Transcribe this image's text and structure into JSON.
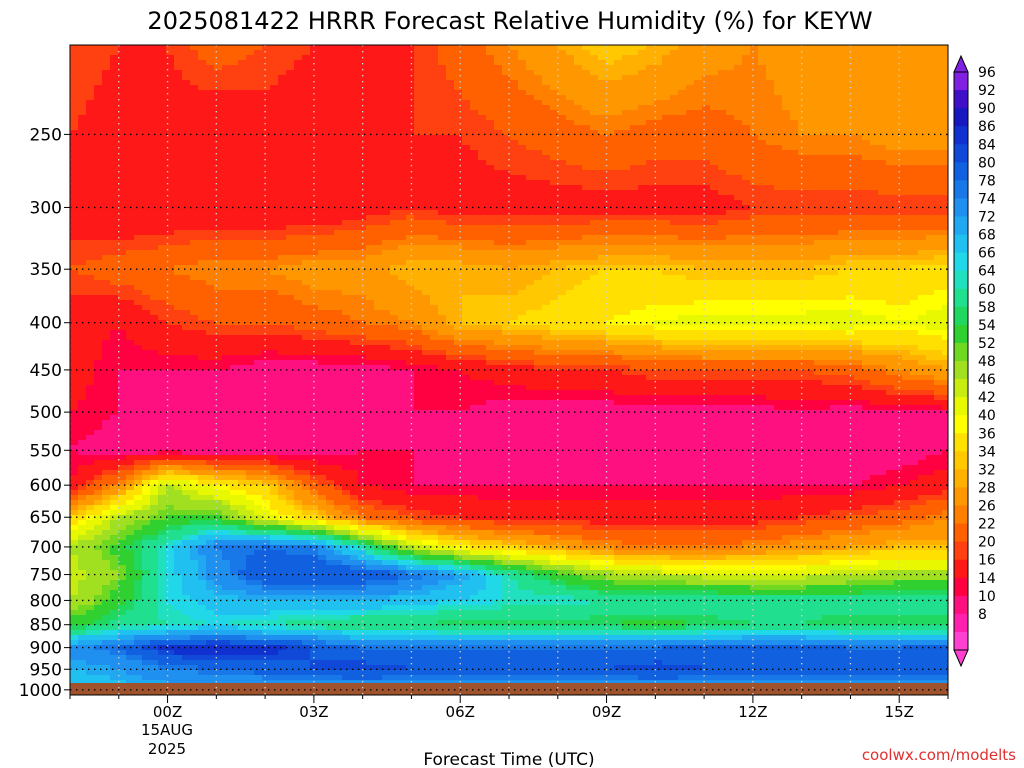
{
  "chart_data": {
    "type": "heatmap",
    "title": "2025081422 HRRR Forecast Relative Humidity (%) for KEYW",
    "xlabel": "Forecast Time (UTC)",
    "ylabel": "",
    "x_ticks": [
      "00Z",
      "03Z",
      "06Z",
      "09Z",
      "12Z",
      "15Z"
    ],
    "x_date_label": [
      "15AUG",
      "2025"
    ],
    "x_hours": [
      -2,
      -1,
      0,
      1,
      2,
      3,
      4,
      5,
      6,
      7,
      8,
      9,
      10,
      11,
      12,
      13,
      14,
      15,
      16
    ],
    "y_ticks": [
      250,
      300,
      350,
      400,
      450,
      500,
      550,
      600,
      650,
      700,
      750,
      800,
      850,
      900,
      950,
      1000
    ],
    "y_levels": [
      200,
      250,
      300,
      350,
      400,
      450,
      500,
      550,
      600,
      650,
      700,
      750,
      800,
      850,
      900,
      950,
      1000
    ],
    "ylim": [
      1013,
      200
    ],
    "xlim": [
      -2,
      16
    ],
    "log_pressure_axis": true,
    "values": [
      [
        22,
        20,
        20,
        24,
        22,
        20,
        18,
        20,
        24,
        28,
        32,
        36,
        34,
        30,
        28,
        30,
        30,
        28,
        30
      ],
      [
        20,
        18,
        18,
        16,
        18,
        16,
        18,
        20,
        20,
        22,
        24,
        26,
        24,
        24,
        26,
        28,
        28,
        30,
        30
      ],
      [
        18,
        16,
        16,
        16,
        16,
        16,
        18,
        20,
        18,
        18,
        18,
        18,
        18,
        18,
        20,
        20,
        20,
        20,
        20
      ],
      [
        22,
        24,
        26,
        28,
        28,
        30,
        30,
        34,
        34,
        32,
        34,
        36,
        36,
        34,
        34,
        34,
        36,
        36,
        38
      ],
      [
        18,
        16,
        20,
        22,
        22,
        24,
        26,
        28,
        34,
        36,
        38,
        40,
        42,
        44,
        44,
        44,
        44,
        42,
        44
      ],
      [
        18,
        14,
        14,
        14,
        12,
        12,
        12,
        14,
        16,
        18,
        20,
        20,
        22,
        22,
        22,
        22,
        24,
        28,
        32
      ],
      [
        16,
        14,
        12,
        10,
        10,
        10,
        12,
        14,
        14,
        12,
        12,
        12,
        12,
        12,
        12,
        14,
        12,
        14,
        14
      ],
      [
        14,
        12,
        12,
        12,
        12,
        12,
        14,
        14,
        12,
        10,
        10,
        10,
        10,
        10,
        10,
        10,
        10,
        12,
        14
      ],
      [
        16,
        28,
        48,
        40,
        36,
        24,
        16,
        14,
        14,
        14,
        14,
        14,
        14,
        14,
        14,
        14,
        14,
        16,
        18
      ],
      [
        36,
        48,
        54,
        56,
        44,
        36,
        26,
        22,
        20,
        18,
        18,
        18,
        18,
        18,
        18,
        20,
        22,
        24,
        28
      ],
      [
        48,
        56,
        66,
        78,
        80,
        78,
        64,
        48,
        40,
        36,
        32,
        28,
        26,
        26,
        28,
        30,
        32,
        34,
        34
      ],
      [
        46,
        52,
        66,
        76,
        84,
        84,
        84,
        80,
        74,
        64,
        56,
        50,
        48,
        46,
        46,
        46,
        48,
        50,
        50
      ],
      [
        48,
        56,
        66,
        70,
        72,
        72,
        72,
        70,
        68,
        66,
        66,
        64,
        64,
        64,
        62,
        62,
        62,
        64,
        64
      ],
      [
        56,
        62,
        64,
        66,
        64,
        62,
        60,
        60,
        58,
        58,
        58,
        58,
        56,
        58,
        60,
        60,
        58,
        58,
        58
      ],
      [
        76,
        80,
        88,
        90,
        88,
        84,
        80,
        80,
        80,
        80,
        80,
        80,
        80,
        82,
        82,
        82,
        80,
        80,
        82
      ],
      [
        72,
        74,
        78,
        80,
        82,
        84,
        86,
        84,
        82,
        82,
        84,
        84,
        86,
        84,
        82,
        82,
        82,
        84,
        84
      ],
      [
        68,
        70,
        72,
        72,
        72,
        72,
        72,
        72,
        72,
        72,
        72,
        72,
        72,
        72,
        72,
        72,
        72,
        72,
        72
      ]
    ],
    "colorbar": {
      "labels": [
        96,
        92,
        90,
        86,
        84,
        80,
        78,
        74,
        72,
        68,
        66,
        64,
        60,
        58,
        54,
        52,
        48,
        46,
        42,
        40,
        36,
        34,
        32,
        28,
        26,
        22,
        20,
        16,
        14,
        10,
        8
      ],
      "colors": [
        "#8020e0",
        "#4010c8",
        "#1818c0",
        "#1030d0",
        "#1048d8",
        "#1060e0",
        "#1878e8",
        "#2090f0",
        "#20a8f0",
        "#20c0f0",
        "#20d8e8",
        "#20e0c0",
        "#20e090",
        "#20d860",
        "#30d030",
        "#70d820",
        "#a0e020",
        "#c8ec10",
        "#e8f800",
        "#ffff00",
        "#ffe000",
        "#ffc800",
        "#ffb000",
        "#ff9800",
        "#ff8000",
        "#ff6000",
        "#ff4010",
        "#ff1818",
        "#ff0040",
        "#ff1080",
        "#ff20b0",
        "#ff40d0"
      ],
      "over_color": "#8020e0",
      "under_color": "#ff40d0"
    },
    "ground_color": "#a0522d",
    "grid": true
  },
  "credit": "coolwx.com/modelts"
}
